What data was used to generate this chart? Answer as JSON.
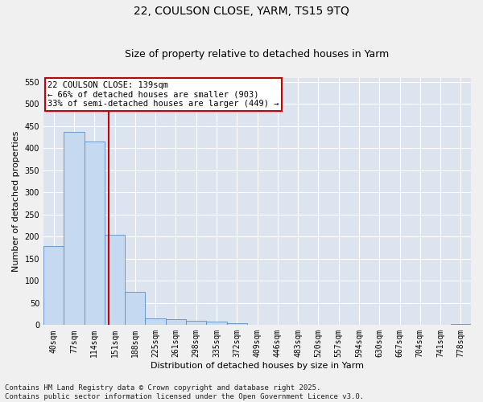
{
  "title": "22, COULSON CLOSE, YARM, TS15 9TQ",
  "subtitle": "Size of property relative to detached houses in Yarm",
  "xlabel": "Distribution of detached houses by size in Yarm",
  "ylabel": "Number of detached properties",
  "categories": [
    "40sqm",
    "77sqm",
    "114sqm",
    "151sqm",
    "188sqm",
    "225sqm",
    "261sqm",
    "298sqm",
    "335sqm",
    "372sqm",
    "409sqm",
    "446sqm",
    "483sqm",
    "520sqm",
    "557sqm",
    "594sqm",
    "630sqm",
    "667sqm",
    "704sqm",
    "741sqm",
    "778sqm"
  ],
  "values": [
    178,
    437,
    415,
    204,
    76,
    16,
    13,
    10,
    7,
    4,
    0,
    0,
    0,
    0,
    0,
    0,
    0,
    0,
    0,
    0,
    3
  ],
  "bar_color": "#c5d9f1",
  "bar_edge_color": "#5b8dc7",
  "vline_x_index": 2.72,
  "vline_color": "#cc0000",
  "annotation_text": "22 COULSON CLOSE: 139sqm\n← 66% of detached houses are smaller (903)\n33% of semi-detached houses are larger (449) →",
  "annotation_box_color": "#ffffff",
  "annotation_box_edge_color": "#cc0000",
  "ylim": [
    0,
    560
  ],
  "yticks": [
    0,
    50,
    100,
    150,
    200,
    250,
    300,
    350,
    400,
    450,
    500,
    550
  ],
  "bg_color": "#dce4f0",
  "grid_color": "#ffffff",
  "footer_text": "Contains HM Land Registry data © Crown copyright and database right 2025.\nContains public sector information licensed under the Open Government Licence v3.0.",
  "title_fontsize": 10,
  "subtitle_fontsize": 9,
  "label_fontsize": 8,
  "tick_fontsize": 7,
  "annot_fontsize": 7.5,
  "footer_fontsize": 6.5
}
